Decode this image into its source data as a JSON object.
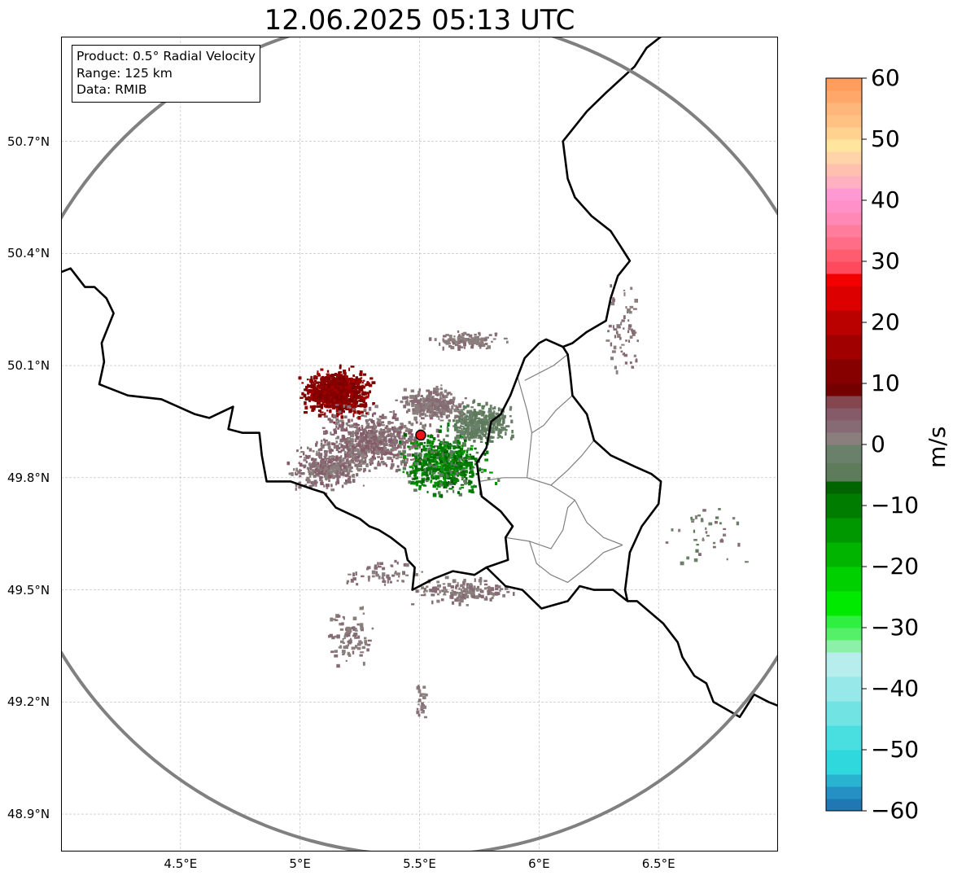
{
  "title": "12.06.2025 05:13 UTC",
  "info_box": {
    "product": "Product: 0.5° Radial Velocity",
    "range": "Range: 125 km",
    "data": "Data: RMIB"
  },
  "map_extent": {
    "lon_min": 4.0,
    "lon_max": 7.0,
    "lat_min": 48.8,
    "lat_max": 50.98
  },
  "lat_labels": [
    {
      "value": 50.7,
      "text": "50.7°N"
    },
    {
      "value": 50.4,
      "text": "50.4°N"
    },
    {
      "value": 50.1,
      "text": "50.1°N"
    },
    {
      "value": 49.8,
      "text": "49.8°N"
    },
    {
      "value": 49.5,
      "text": "49.5°N"
    },
    {
      "value": 49.2,
      "text": "49.2°N"
    },
    {
      "value": 48.9,
      "text": "48.9°N"
    }
  ],
  "lon_labels": [
    {
      "value": 4.5,
      "text": "4.5°E"
    },
    {
      "value": 5.0,
      "text": "5°E"
    },
    {
      "value": 5.5,
      "text": "5.5°E"
    },
    {
      "value": 6.0,
      "text": "6°E"
    },
    {
      "value": 6.5,
      "text": "6.5°E"
    }
  ],
  "radar_site": {
    "lon": 5.505,
    "lat": 49.914,
    "color": "#e8141c"
  },
  "range_ring_color": "#808080",
  "colorbar": {
    "unit": "m/s",
    "min": -60,
    "max": 60,
    "ticks": [
      60,
      50,
      40,
      30,
      20,
      10,
      0,
      -10,
      -20,
      -30,
      -40,
      -50,
      -60
    ],
    "tick_labels": [
      "60",
      "50",
      "40",
      "30",
      "20",
      "10",
      "0",
      "−10",
      "−20",
      "−30",
      "−40",
      "−50",
      "−60"
    ],
    "bands": [
      {
        "from": -60,
        "to": -58,
        "color": "#1f77b4"
      },
      {
        "from": -58,
        "to": -56,
        "color": "#2590c4"
      },
      {
        "from": -56,
        "to": -54,
        "color": "#29b3d0"
      },
      {
        "from": -54,
        "to": -50,
        "color": "#2fd8dc"
      },
      {
        "from": -50,
        "to": -46,
        "color": "#49dfe0"
      },
      {
        "from": -46,
        "to": -42,
        "color": "#71e3e3"
      },
      {
        "from": -42,
        "to": -38,
        "color": "#97e8e8"
      },
      {
        "from": -38,
        "to": -34,
        "color": "#b7eded"
      },
      {
        "from": -34,
        "to": -32,
        "color": "#8cf0a8"
      },
      {
        "from": -32,
        "to": -30,
        "color": "#55f06a"
      },
      {
        "from": -30,
        "to": -28,
        "color": "#2ff040"
      },
      {
        "from": -28,
        "to": -24,
        "color": "#00ea00"
      },
      {
        "from": -24,
        "to": -20,
        "color": "#00cf00"
      },
      {
        "from": -20,
        "to": -16,
        "color": "#00b400"
      },
      {
        "from": -16,
        "to": -12,
        "color": "#009800"
      },
      {
        "from": -12,
        "to": -8,
        "color": "#007d00"
      },
      {
        "from": -8,
        "to": -6,
        "color": "#006400"
      },
      {
        "from": -6,
        "to": -3,
        "color": "#5e7b5c"
      },
      {
        "from": -3,
        "to": 0,
        "color": "#6b806b"
      },
      {
        "from": 0,
        "to": 2,
        "color": "#8a7f7c"
      },
      {
        "from": 2,
        "to": 4,
        "color": "#866b75"
      },
      {
        "from": 4,
        "to": 6,
        "color": "#865b69"
      },
      {
        "from": 6,
        "to": 8,
        "color": "#84464f"
      },
      {
        "from": 8,
        "to": 10,
        "color": "#750000"
      },
      {
        "from": 10,
        "to": 14,
        "color": "#860000"
      },
      {
        "from": 14,
        "to": 18,
        "color": "#a00000"
      },
      {
        "from": 18,
        "to": 22,
        "color": "#bb0000"
      },
      {
        "from": 22,
        "to": 26,
        "color": "#dc0000"
      },
      {
        "from": 26,
        "to": 28,
        "color": "#f50000"
      },
      {
        "from": 28,
        "to": 30,
        "color": "#ff4a5e"
      },
      {
        "from": 30,
        "to": 32,
        "color": "#ff5c70"
      },
      {
        "from": 32,
        "to": 34,
        "color": "#ff6e86"
      },
      {
        "from": 34,
        "to": 36,
        "color": "#ff7c9c"
      },
      {
        "from": 36,
        "to": 38,
        "color": "#ff88b4"
      },
      {
        "from": 38,
        "to": 40,
        "color": "#ff90c8"
      },
      {
        "from": 40,
        "to": 42,
        "color": "#ff99d3"
      },
      {
        "from": 42,
        "to": 44,
        "color": "#ffb0c0"
      },
      {
        "from": 44,
        "to": 46,
        "color": "#ffc0b0"
      },
      {
        "from": 46,
        "to": 48,
        "color": "#ffd4a8"
      },
      {
        "from": 48,
        "to": 50,
        "color": "#ffe59d"
      },
      {
        "from": 50,
        "to": 52,
        "color": "#ffd28f"
      },
      {
        "from": 52,
        "to": 54,
        "color": "#ffc283"
      },
      {
        "from": 54,
        "to": 56,
        "color": "#ffb67a"
      },
      {
        "from": 56,
        "to": 58,
        "color": "#ffa86a"
      },
      {
        "from": 58,
        "to": 60,
        "color": "#ff9e5c"
      }
    ]
  },
  "borders": {
    "country": [
      [
        [
          4.0,
          50.35
        ],
        [
          4.04,
          50.36
        ],
        [
          4.1,
          50.31
        ],
        [
          4.14,
          50.31
        ],
        [
          4.19,
          50.28
        ],
        [
          4.22,
          50.24
        ],
        [
          4.17,
          50.16
        ],
        [
          4.18,
          50.11
        ],
        [
          4.16,
          50.05
        ],
        [
          4.28,
          50.02
        ],
        [
          4.42,
          50.01
        ],
        [
          4.56,
          49.97
        ],
        [
          4.62,
          49.96
        ],
        [
          4.72,
          49.99
        ],
        [
          4.7,
          49.93
        ],
        [
          4.76,
          49.92
        ],
        [
          4.83,
          49.92
        ],
        [
          4.84,
          49.86
        ],
        [
          4.86,
          49.79
        ],
        [
          4.96,
          49.79
        ],
        [
          5.05,
          49.77
        ],
        [
          5.1,
          49.76
        ],
        [
          5.15,
          49.72
        ],
        [
          5.25,
          49.69
        ],
        [
          5.29,
          49.67
        ],
        [
          5.33,
          49.66
        ],
        [
          5.38,
          49.64
        ],
        [
          5.44,
          49.61
        ],
        [
          5.45,
          49.58
        ],
        [
          5.48,
          49.56
        ],
        [
          5.47,
          49.5
        ],
        [
          5.56,
          49.53
        ],
        [
          5.64,
          49.55
        ],
        [
          5.73,
          49.54
        ],
        [
          5.78,
          49.56
        ],
        [
          5.86,
          49.51
        ],
        [
          5.93,
          49.5
        ],
        [
          6.01,
          49.45
        ],
        [
          6.12,
          49.47
        ],
        [
          6.17,
          49.51
        ],
        [
          6.23,
          49.5
        ],
        [
          6.31,
          49.5
        ],
        [
          6.37,
          49.47
        ],
        [
          6.41,
          49.47
        ],
        [
          6.52,
          49.41
        ],
        [
          6.58,
          49.36
        ],
        [
          6.6,
          49.32
        ],
        [
          6.65,
          49.27
        ],
        [
          6.7,
          49.25
        ],
        [
          6.73,
          49.2
        ],
        [
          6.84,
          49.16
        ],
        [
          6.86,
          49.18
        ],
        [
          6.9,
          49.22
        ],
        [
          6.96,
          49.2
        ],
        [
          7.0,
          49.19
        ]
      ],
      [
        [
          5.78,
          49.56
        ],
        [
          5.87,
          49.58
        ],
        [
          5.86,
          49.64
        ],
        [
          5.89,
          49.67
        ],
        [
          5.84,
          49.71
        ],
        [
          5.76,
          49.75
        ],
        [
          5.75,
          49.79
        ],
        [
          5.74,
          49.84
        ],
        [
          5.78,
          49.88
        ],
        [
          5.8,
          49.95
        ],
        [
          5.84,
          49.97
        ],
        [
          5.88,
          50.02
        ],
        [
          5.91,
          50.07
        ],
        [
          5.94,
          50.12
        ],
        [
          6.0,
          50.16
        ],
        [
          6.03,
          50.17
        ],
        [
          6.1,
          50.15
        ],
        [
          6.12,
          50.13
        ],
        [
          6.13,
          50.08
        ],
        [
          6.14,
          50.02
        ],
        [
          6.2,
          49.97
        ],
        [
          6.23,
          49.9
        ],
        [
          6.3,
          49.86
        ],
        [
          6.4,
          49.83
        ],
        [
          6.47,
          49.81
        ],
        [
          6.51,
          49.79
        ],
        [
          6.5,
          49.73
        ],
        [
          6.43,
          49.67
        ],
        [
          6.38,
          49.6
        ],
        [
          6.36,
          49.5
        ],
        [
          6.37,
          49.47
        ]
      ],
      [
        [
          6.55,
          51.0
        ],
        [
          6.45,
          50.95
        ],
        [
          6.4,
          50.9
        ],
        [
          6.28,
          50.83
        ],
        [
          6.2,
          50.78
        ],
        [
          6.15,
          50.74
        ],
        [
          6.1,
          50.7
        ],
        [
          6.12,
          50.6
        ],
        [
          6.15,
          50.55
        ],
        [
          6.22,
          50.5
        ],
        [
          6.3,
          50.46
        ],
        [
          6.34,
          50.42
        ],
        [
          6.38,
          50.38
        ],
        [
          6.33,
          50.34
        ],
        [
          6.3,
          50.28
        ],
        [
          6.28,
          50.22
        ],
        [
          6.2,
          50.19
        ],
        [
          6.14,
          50.16
        ],
        [
          6.1,
          50.15
        ]
      ]
    ],
    "admin": [
      [
        [
          5.75,
          49.79
        ],
        [
          5.85,
          49.8
        ],
        [
          5.95,
          49.8
        ],
        [
          6.05,
          49.78
        ],
        [
          6.15,
          49.74
        ],
        [
          6.2,
          49.68
        ],
        [
          6.27,
          49.64
        ],
        [
          6.35,
          49.62
        ]
      ],
      [
        [
          5.91,
          50.07
        ],
        [
          5.95,
          49.98
        ],
        [
          5.97,
          49.92
        ],
        [
          5.96,
          49.86
        ],
        [
          5.95,
          49.8
        ]
      ],
      [
        [
          5.86,
          49.64
        ],
        [
          5.96,
          49.63
        ],
        [
          6.05,
          49.61
        ],
        [
          6.1,
          49.66
        ],
        [
          6.12,
          49.72
        ],
        [
          6.15,
          49.74
        ]
      ],
      [
        [
          5.96,
          49.63
        ],
        [
          5.99,
          49.57
        ],
        [
          6.05,
          49.54
        ],
        [
          6.12,
          49.52
        ],
        [
          6.2,
          49.56
        ],
        [
          6.27,
          49.6
        ],
        [
          6.35,
          49.62
        ]
      ],
      [
        [
          6.05,
          49.78
        ],
        [
          6.12,
          49.82
        ],
        [
          6.18,
          49.86
        ],
        [
          6.23,
          49.9
        ]
      ],
      [
        [
          6.14,
          50.02
        ],
        [
          6.07,
          49.98
        ],
        [
          6.02,
          49.94
        ],
        [
          5.97,
          49.92
        ]
      ],
      [
        [
          6.12,
          50.13
        ],
        [
          6.06,
          50.1
        ],
        [
          6.0,
          50.08
        ],
        [
          5.94,
          50.06
        ]
      ]
    ],
    "range_ring": {
      "center_lon": 5.505,
      "center_lat": 49.914,
      "radius_km": 125
    }
  }
}
